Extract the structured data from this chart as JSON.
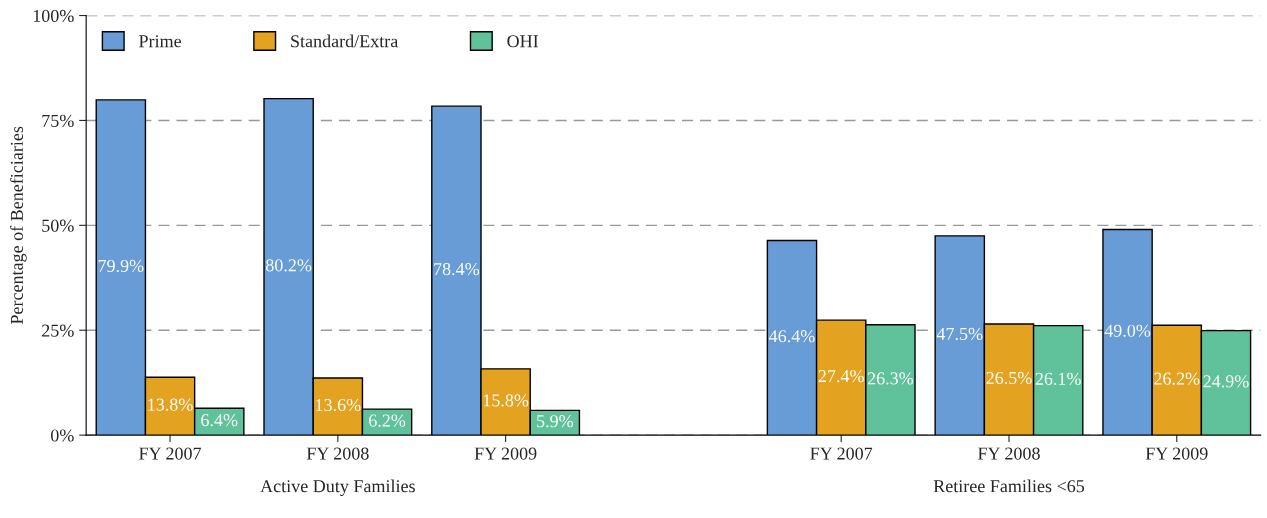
{
  "chart_data": {
    "type": "bar",
    "ylabel": "Percentage of Beneficiaries",
    "categories": [
      "FY 2007",
      "FY 2008",
      "FY 2009",
      null,
      "FY 2007",
      "FY 2008",
      "FY 2009"
    ],
    "series": [
      {
        "name": "Prime",
        "color": "#679cd6",
        "values": [
          79.9,
          80.2,
          78.4,
          null,
          46.4,
          47.5,
          49.0
        ],
        "value_labels": [
          "79.9%",
          "80.2%",
          "78.4%",
          null,
          "46.4%",
          "47.5%",
          "49.0%"
        ]
      },
      {
        "name": "Standard/Extra",
        "color": "#e3a21f",
        "values": [
          13.8,
          13.6,
          15.8,
          null,
          27.4,
          26.5,
          26.2
        ],
        "value_labels": [
          "13.8%",
          "13.6%",
          "15.8%",
          null,
          "27.4%",
          "26.5%",
          "26.2%"
        ]
      },
      {
        "name": "OHI",
        "color": "#5fc29b",
        "values": [
          6.4,
          6.2,
          5.9,
          null,
          26.3,
          26.1,
          24.9
        ],
        "value_labels": [
          "6.4%",
          "6.2%",
          "5.9%",
          null,
          "26.3%",
          "26.1%",
          "24.9%"
        ]
      }
    ],
    "ylim": [
      0,
      100
    ],
    "yticks": [
      {
        "value": 0,
        "label": "0%"
      },
      {
        "value": 25,
        "label": "25%"
      },
      {
        "value": 50,
        "label": "50%"
      },
      {
        "value": 75,
        "label": "75%"
      },
      {
        "value": 100,
        "label": "100%"
      }
    ],
    "grid": "y",
    "line_style": "dashed",
    "legend": "top left",
    "annotations": [
      "Active Duty Families",
      "Retiree Families <65"
    ]
  }
}
